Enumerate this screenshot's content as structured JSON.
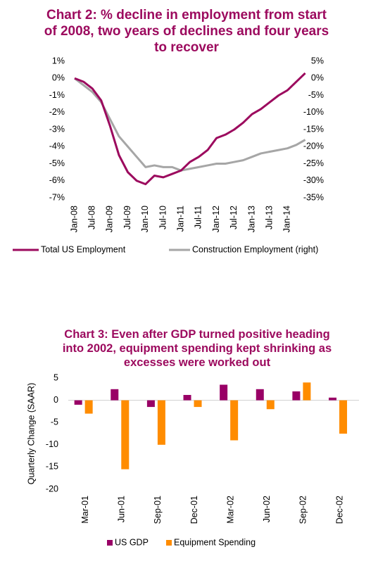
{
  "chart_data": [
    {
      "type": "line",
      "title": "Chart 2: % decline in employment from start of 2008, two years of declines and four years to recover",
      "categories": [
        "Jan-08",
        null,
        "Jul-08",
        null,
        "Jan-09",
        null,
        "Jul-09",
        null,
        "Jan-10",
        null,
        "Jul-10",
        null,
        "Jan-11",
        null,
        "Jul-11",
        null,
        "Jan-12",
        null,
        "Jul-12",
        null,
        "Jan-13",
        null,
        "Jul-13",
        null,
        "Jan-14",
        null,
        null
      ],
      "series": [
        {
          "name": "Total US Employment",
          "color": "#9c0a5e",
          "values": [
            0,
            -0.2,
            -0.6,
            -1.3,
            -2.8,
            -4.5,
            -5.5,
            -6.0,
            -6.2,
            -5.7,
            -5.8,
            -5.6,
            -5.4,
            -4.9,
            -4.6,
            -4.2,
            -3.5,
            -3.3,
            -3.0,
            -2.6,
            -2.1,
            -1.8,
            -1.4,
            -1.0,
            -0.7,
            -0.2,
            0.3
          ]
        },
        {
          "name": "Construction Employment (right)",
          "color": "#a6a6a6",
          "axis": "y2",
          "values": [
            0,
            -2,
            -4,
            -7,
            -12,
            -17,
            -20,
            -23,
            -26,
            -25.5,
            -26,
            -26,
            -27,
            -26.5,
            -26,
            -25.5,
            -25,
            -25,
            -24.5,
            -24,
            -23,
            -22,
            -21.5,
            -21,
            -20.5,
            -19.5,
            -18
          ]
        }
      ],
      "ylim": [
        -7,
        1
      ],
      "yticks": [
        {
          "value": 1,
          "label": "1%"
        },
        {
          "value": 0,
          "label": "0%"
        },
        {
          "value": -1,
          "label": "-1%"
        },
        {
          "value": -2,
          "label": "-2%"
        },
        {
          "value": -3,
          "label": "-3%"
        },
        {
          "value": -4,
          "label": "-4%"
        },
        {
          "value": -5,
          "label": "-5%"
        },
        {
          "value": -6,
          "label": "-6%"
        },
        {
          "value": -7,
          "label": "-7%"
        }
      ],
      "y2lim": [
        -35,
        5
      ],
      "y2ticks": [
        {
          "value": 5,
          "label": "5%"
        },
        {
          "value": 0,
          "label": "0%"
        },
        {
          "value": -5,
          "label": "-5%"
        },
        {
          "value": -10,
          "label": "-10%"
        },
        {
          "value": -15,
          "label": "-15%"
        },
        {
          "value": -20,
          "label": "-20%"
        },
        {
          "value": -25,
          "label": "-25%"
        },
        {
          "value": -30,
          "label": "-30%"
        },
        {
          "value": -35,
          "label": "-35%"
        }
      ],
      "grid": false
    },
    {
      "type": "bar",
      "title": "Chart 3: Even after GDP turned positive heading into 2002, equipment spending kept shrinking as excesses were worked out",
      "y_label": "Quarterly Change (SAAR)",
      "categories": [
        "Mar-01",
        "Jun-01",
        "Sep-01",
        "Dec-01",
        "Mar-02",
        "Jun-02",
        "Sep-02",
        "Dec-02"
      ],
      "series": [
        {
          "name": "US GDP",
          "color": "#990066",
          "values": [
            -1,
            2.5,
            -1.5,
            1.2,
            3.5,
            2.5,
            2,
            0.6
          ]
        },
        {
          "name": "Equipment Spending",
          "color": "#ff8c00",
          "values": [
            -3,
            -15.5,
            -10,
            -1.5,
            -9,
            -2,
            4,
            -7.5
          ]
        }
      ],
      "ylim": [
        -20,
        5
      ],
      "yticks": [
        5,
        0,
        -5,
        -10,
        -15,
        -20
      ],
      "grid": false
    }
  ]
}
